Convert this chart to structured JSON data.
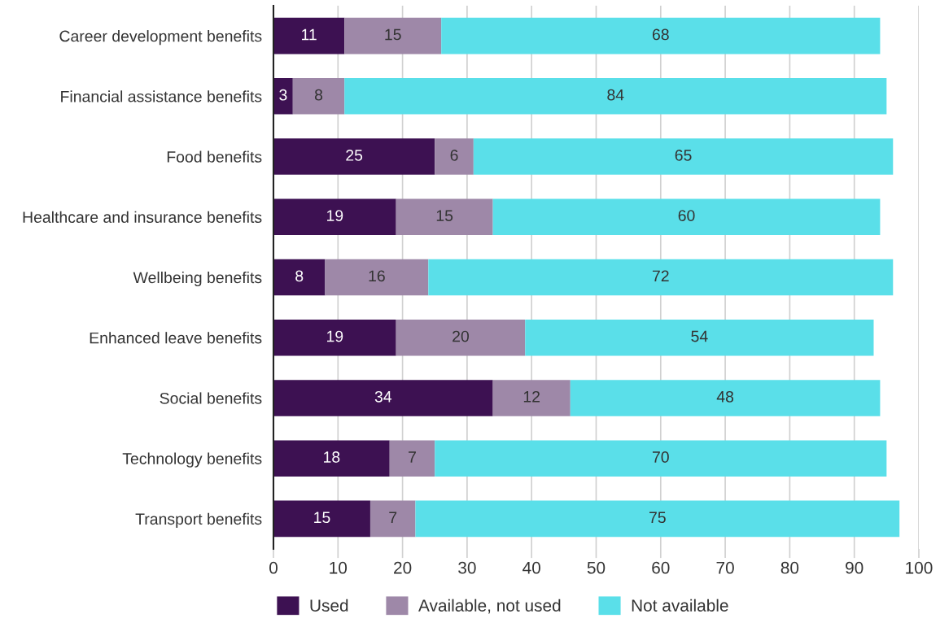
{
  "chart_data": {
    "type": "bar",
    "orientation": "horizontal",
    "stacked": true,
    "categories": [
      "Career development benefits",
      "Financial assistance benefits",
      "Food benefits",
      "Healthcare and insurance benefits",
      "Wellbeing benefits",
      "Enhanced leave benefits",
      "Social benefits",
      "Technology benefits",
      "Transport benefits"
    ],
    "series": [
      {
        "name": "Used",
        "color": "#3d1152",
        "values": [
          11,
          3,
          25,
          19,
          8,
          19,
          34,
          18,
          15
        ]
      },
      {
        "name": "Available, not used",
        "color": "#9e88a8",
        "values": [
          15,
          8,
          6,
          15,
          16,
          20,
          12,
          7,
          7
        ]
      },
      {
        "name": "Not available",
        "color": "#5adfe9",
        "values": [
          68,
          84,
          65,
          60,
          72,
          54,
          48,
          70,
          75
        ]
      }
    ],
    "xlim": [
      0,
      100
    ],
    "xticks": [
      0,
      10,
      20,
      30,
      40,
      50,
      60,
      70,
      80,
      90,
      100
    ],
    "grid": "x",
    "legend": "bottom",
    "data_labels": true
  }
}
